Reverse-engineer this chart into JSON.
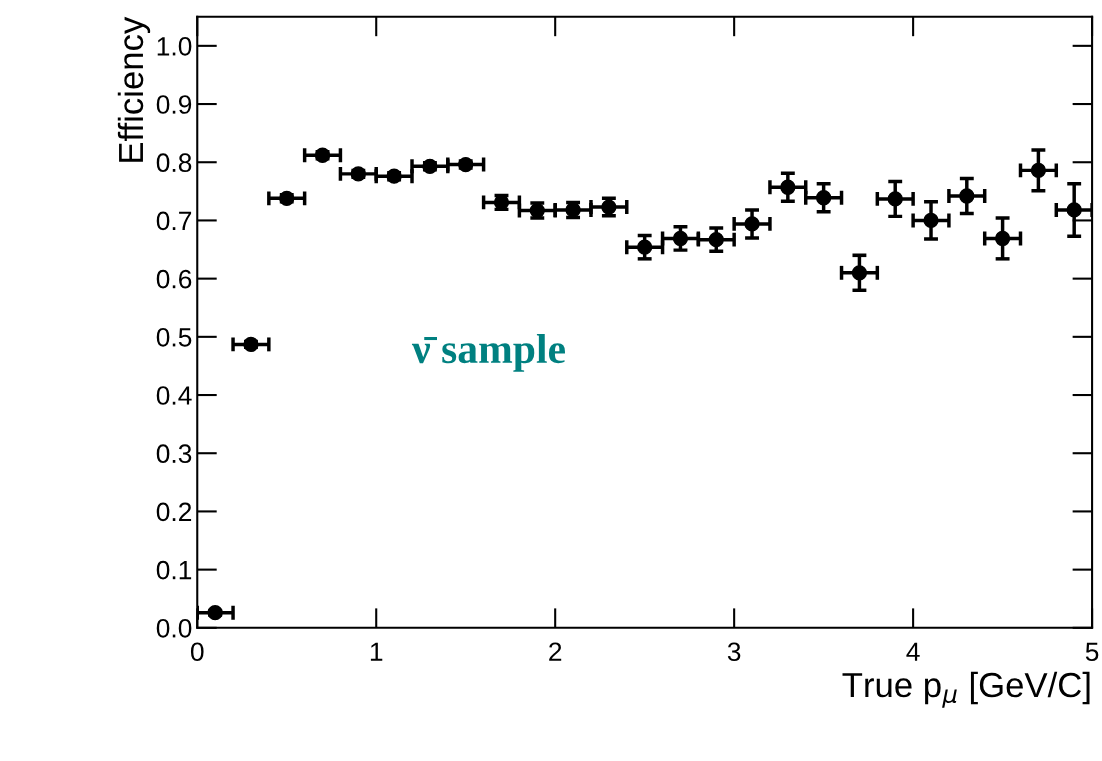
{
  "chart_data": {
    "type": "scatter",
    "xlabel": "True p$_{μ}$ [GeV/C]",
    "ylabel": "Efficiency",
    "annotations": [
      "ν̄ sample"
    ],
    "x": [
      0.1,
      0.3,
      0.5,
      0.7,
      0.9,
      1.1,
      1.3,
      1.5,
      1.7,
      1.9,
      2.1,
      2.3,
      2.5,
      2.7,
      2.9,
      3.1,
      3.3,
      3.5,
      3.7,
      3.9,
      4.1,
      4.3,
      4.5,
      4.7,
      4.9
    ],
    "series": [
      {
        "color": "#000000",
        "values": [
          0.026,
          0.487,
          0.738,
          0.812,
          0.78,
          0.776,
          0.793,
          0.796,
          0.731,
          0.717,
          0.718,
          0.723,
          0.654,
          0.669,
          0.667,
          0.694,
          0.757,
          0.739,
          0.61,
          0.737,
          0.7,
          0.742,
          0.669,
          0.786,
          0.718
        ],
        "errors": [
          0.004,
          0.005,
          0.006,
          0.006,
          0.006,
          0.006,
          0.006,
          0.006,
          0.012,
          0.013,
          0.013,
          0.015,
          0.02,
          0.02,
          0.02,
          0.024,
          0.024,
          0.024,
          0.03,
          0.03,
          0.032,
          0.03,
          0.035,
          0.035,
          0.045
        ],
        "xerrors": [
          0.1,
          0.1,
          0.1,
          0.1,
          0.1,
          0.1,
          0.1,
          0.1,
          0.1,
          0.1,
          0.1,
          0.1,
          0.1,
          0.1,
          0.1,
          0.1,
          0.1,
          0.1,
          0.1,
          0.1,
          0.1,
          0.1,
          0.1,
          0.1,
          0.1
        ]
      }
    ],
    "marker": "circle",
    "xlim": [
      0,
      5
    ],
    "xticks": [
      0,
      1,
      2,
      3,
      4,
      5
    ],
    "ylim": [
      0,
      1.05
    ],
    "yticks": [
      {
        "value": 0,
        "label": "0.0"
      },
      0.1,
      0.2,
      0.3,
      0.4,
      0.5,
      0.6,
      0.7,
      0.8,
      0.9,
      {
        "value": 1,
        "label": "1.0"
      }
    ],
    "grid": false,
    "legend": false
  }
}
